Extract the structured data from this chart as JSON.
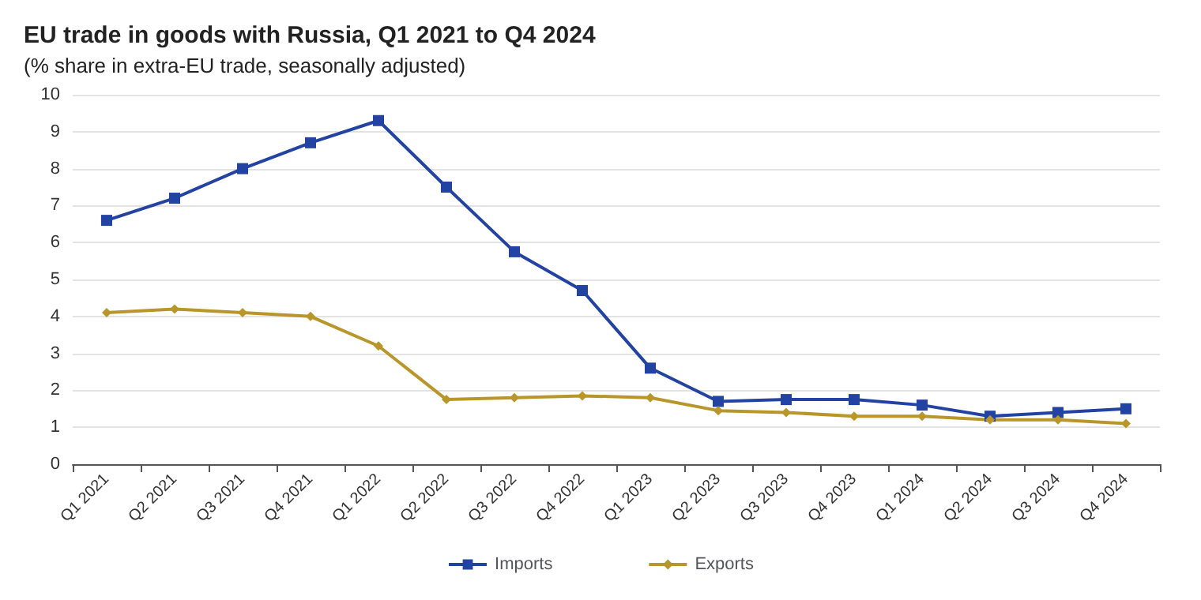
{
  "chart_data": {
    "type": "line",
    "title": "EU trade in goods with Russia, Q1 2021 to Q4 2024",
    "subtitle": "(% share in extra-EU trade, seasonally adjusted)",
    "categories": [
      "Q1 2021",
      "Q2 2021",
      "Q3 2021",
      "Q4 2021",
      "Q1 2022",
      "Q2 2022",
      "Q3 2022",
      "Q4 2022",
      "Q1 2023",
      "Q2 2023",
      "Q3 2023",
      "Q4 2023",
      "Q1 2024",
      "Q2 2024",
      "Q3 2024",
      "Q4 2024"
    ],
    "series": [
      {
        "name": "Imports",
        "color": "#2343a3",
        "marker": "square",
        "values": [
          6.6,
          7.2,
          8.0,
          8.7,
          9.3,
          7.5,
          5.75,
          4.7,
          2.6,
          1.7,
          1.75,
          1.75,
          1.6,
          1.3,
          1.4,
          1.5
        ]
      },
      {
        "name": "Exports",
        "color": "#b8962a",
        "marker": "diamond",
        "values": [
          4.1,
          4.2,
          4.1,
          4.0,
          3.2,
          1.75,
          1.8,
          1.85,
          1.8,
          1.45,
          1.4,
          1.3,
          1.3,
          1.2,
          1.2,
          1.1
        ]
      }
    ],
    "ylim": [
      0,
      10
    ],
    "yticks": [
      0,
      1,
      2,
      3,
      4,
      5,
      6,
      7,
      8,
      9,
      10
    ],
    "grid": "y",
    "legend": "bottom",
    "line_style": "solid"
  }
}
